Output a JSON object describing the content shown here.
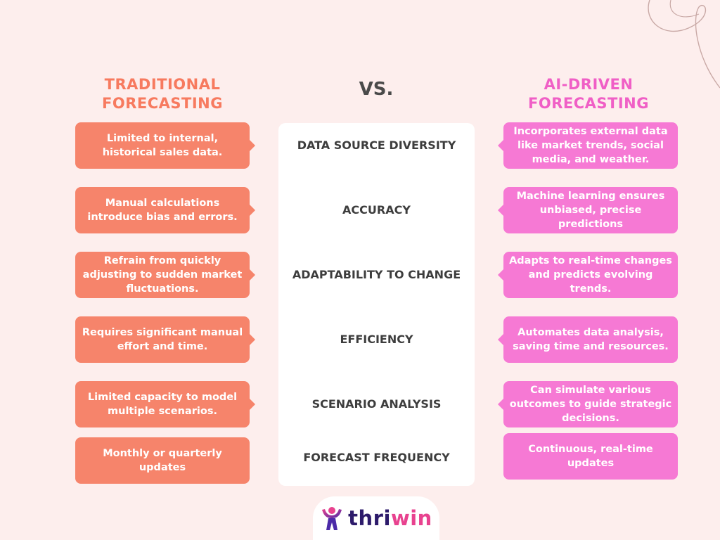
{
  "headings": {
    "left": "TRADITIONAL FORECASTING",
    "vs": "VS.",
    "right": "AI-DRIVEN FORECASTING"
  },
  "rows": [
    {
      "criterion": "DATA SOURCE DIVERSITY",
      "traditional": "Limited to internal, historical sales data.",
      "ai": "Incorporates external data like market trends, social media, and weather."
    },
    {
      "criterion": "ACCURACY",
      "traditional": "Manual calculations introduce bias and errors.",
      "ai": "Machine learning ensures unbiased, precise predictions"
    },
    {
      "criterion": "ADAPTABILITY TO CHANGE",
      "traditional": "Refrain from quickly adjusting to sudden market fluctuations.",
      "ai": "Adapts to real-time changes and predicts evolving trends."
    },
    {
      "criterion": "EFFICIENCY",
      "traditional": "Requires significant manual effort and time.",
      "ai": "Automates data analysis, saving time and resources."
    },
    {
      "criterion": "SCENARIO ANALYSIS",
      "traditional": "Limited capacity to model multiple scenarios.",
      "ai": "Can simulate various outcomes to guide strategic decisions."
    },
    {
      "criterion": "FORECAST FREQUENCY",
      "traditional": "Monthly or quarterly updates",
      "ai": "Continuous, real-time updates"
    }
  ],
  "logo": {
    "text_main": "thri",
    "text_accent": "win"
  },
  "colors": {
    "background": "#fdeeed",
    "traditional": "#f6846b",
    "ai": "#f679d4",
    "traditional_heading": "#f77a5f",
    "ai_heading": "#f05fc6"
  }
}
